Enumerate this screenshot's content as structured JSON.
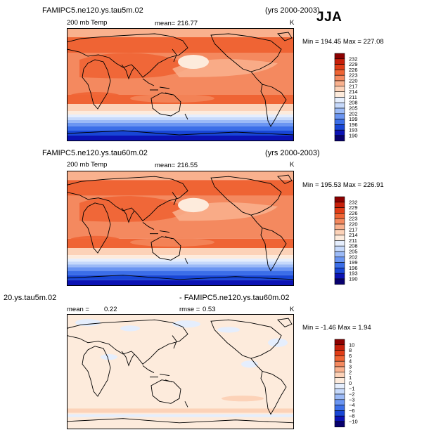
{
  "season_label": "JJA",
  "colors": {
    "warm_scale": [
      "#08006e",
      "#0b12b4",
      "#1846d6",
      "#3b6ee8",
      "#6a95f2",
      "#9bbaf7",
      "#c6d9fb",
      "#e5eefd",
      "#fdebdc",
      "#fcd2b8",
      "#f9b18e",
      "#f4895f",
      "#ef6434",
      "#e03c16",
      "#c71f0a",
      "#8c0000"
    ],
    "diff_scale": [
      "#08006e",
      "#0b12b4",
      "#1846d6",
      "#3b6ee8",
      "#6a95f2",
      "#9bbaf7",
      "#c6d9fb",
      "#e5eefd",
      "#fdebdc",
      "#fcd2b8",
      "#f9b18e",
      "#f4895f",
      "#ef6434",
      "#e03c16",
      "#c71f0a",
      "#8c0000"
    ]
  },
  "panels": [
    {
      "title_left": "FAMIPC5.ne120.ys.tau5m.02",
      "title_right": "(yrs 2000-2003)",
      "field_label": "200 mb Temp",
      "mean_text": "mean= 216.77",
      "units": "K",
      "minmax_text": "Min = 194.45 Max = 227.08"
    },
    {
      "title_left": "FAMIPC5.ne120.ys.tau60m.02",
      "title_right": "(yrs 2000-2003)",
      "field_label": "200 mb Temp",
      "mean_text": "mean= 216.55",
      "units": "K",
      "minmax_text": "Min = 195.53 Max = 226.91"
    },
    {
      "title_left": "20.ys.tau5m.02",
      "title_right": "- FAMIPC5.ne120.ys.tau60m.02",
      "field_label": "mean =",
      "mean_value": "0.22",
      "rmse_text": "rmse =",
      "rmse_value": "0.53",
      "units": "K",
      "minmax_text": "Min = -1.46 Max = 1.94"
    }
  ],
  "chart_data": [
    {
      "type": "heatmap",
      "title": "FAMIPC5.ne120.ys.tau5m.02",
      "field": "200 mb Temp",
      "units": "K",
      "mean": 216.77,
      "min": 194.45,
      "max": 227.08,
      "colorbar_levels": [
        190,
        193,
        196,
        199,
        202,
        205,
        208,
        211,
        214,
        217,
        220,
        223,
        226,
        229,
        232
      ]
    },
    {
      "type": "heatmap",
      "title": "FAMIPC5.ne120.ys.tau60m.02",
      "field": "200 mb Temp",
      "units": "K",
      "mean": 216.55,
      "min": 195.53,
      "max": 226.91,
      "colorbar_levels": [
        190,
        193,
        196,
        199,
        202,
        205,
        208,
        211,
        214,
        217,
        220,
        223,
        226,
        229,
        232
      ]
    },
    {
      "type": "heatmap",
      "title": "- FAMIPC5.ne120.ys.tau60m.02",
      "units": "K",
      "mean": 0.22,
      "rmse": 0.53,
      "min": -1.46,
      "max": 1.94,
      "colorbar_levels": [
        -10,
        -8,
        -6,
        -4,
        -3,
        -2,
        -1,
        0,
        1,
        2,
        3,
        4,
        6,
        8,
        10
      ]
    }
  ]
}
